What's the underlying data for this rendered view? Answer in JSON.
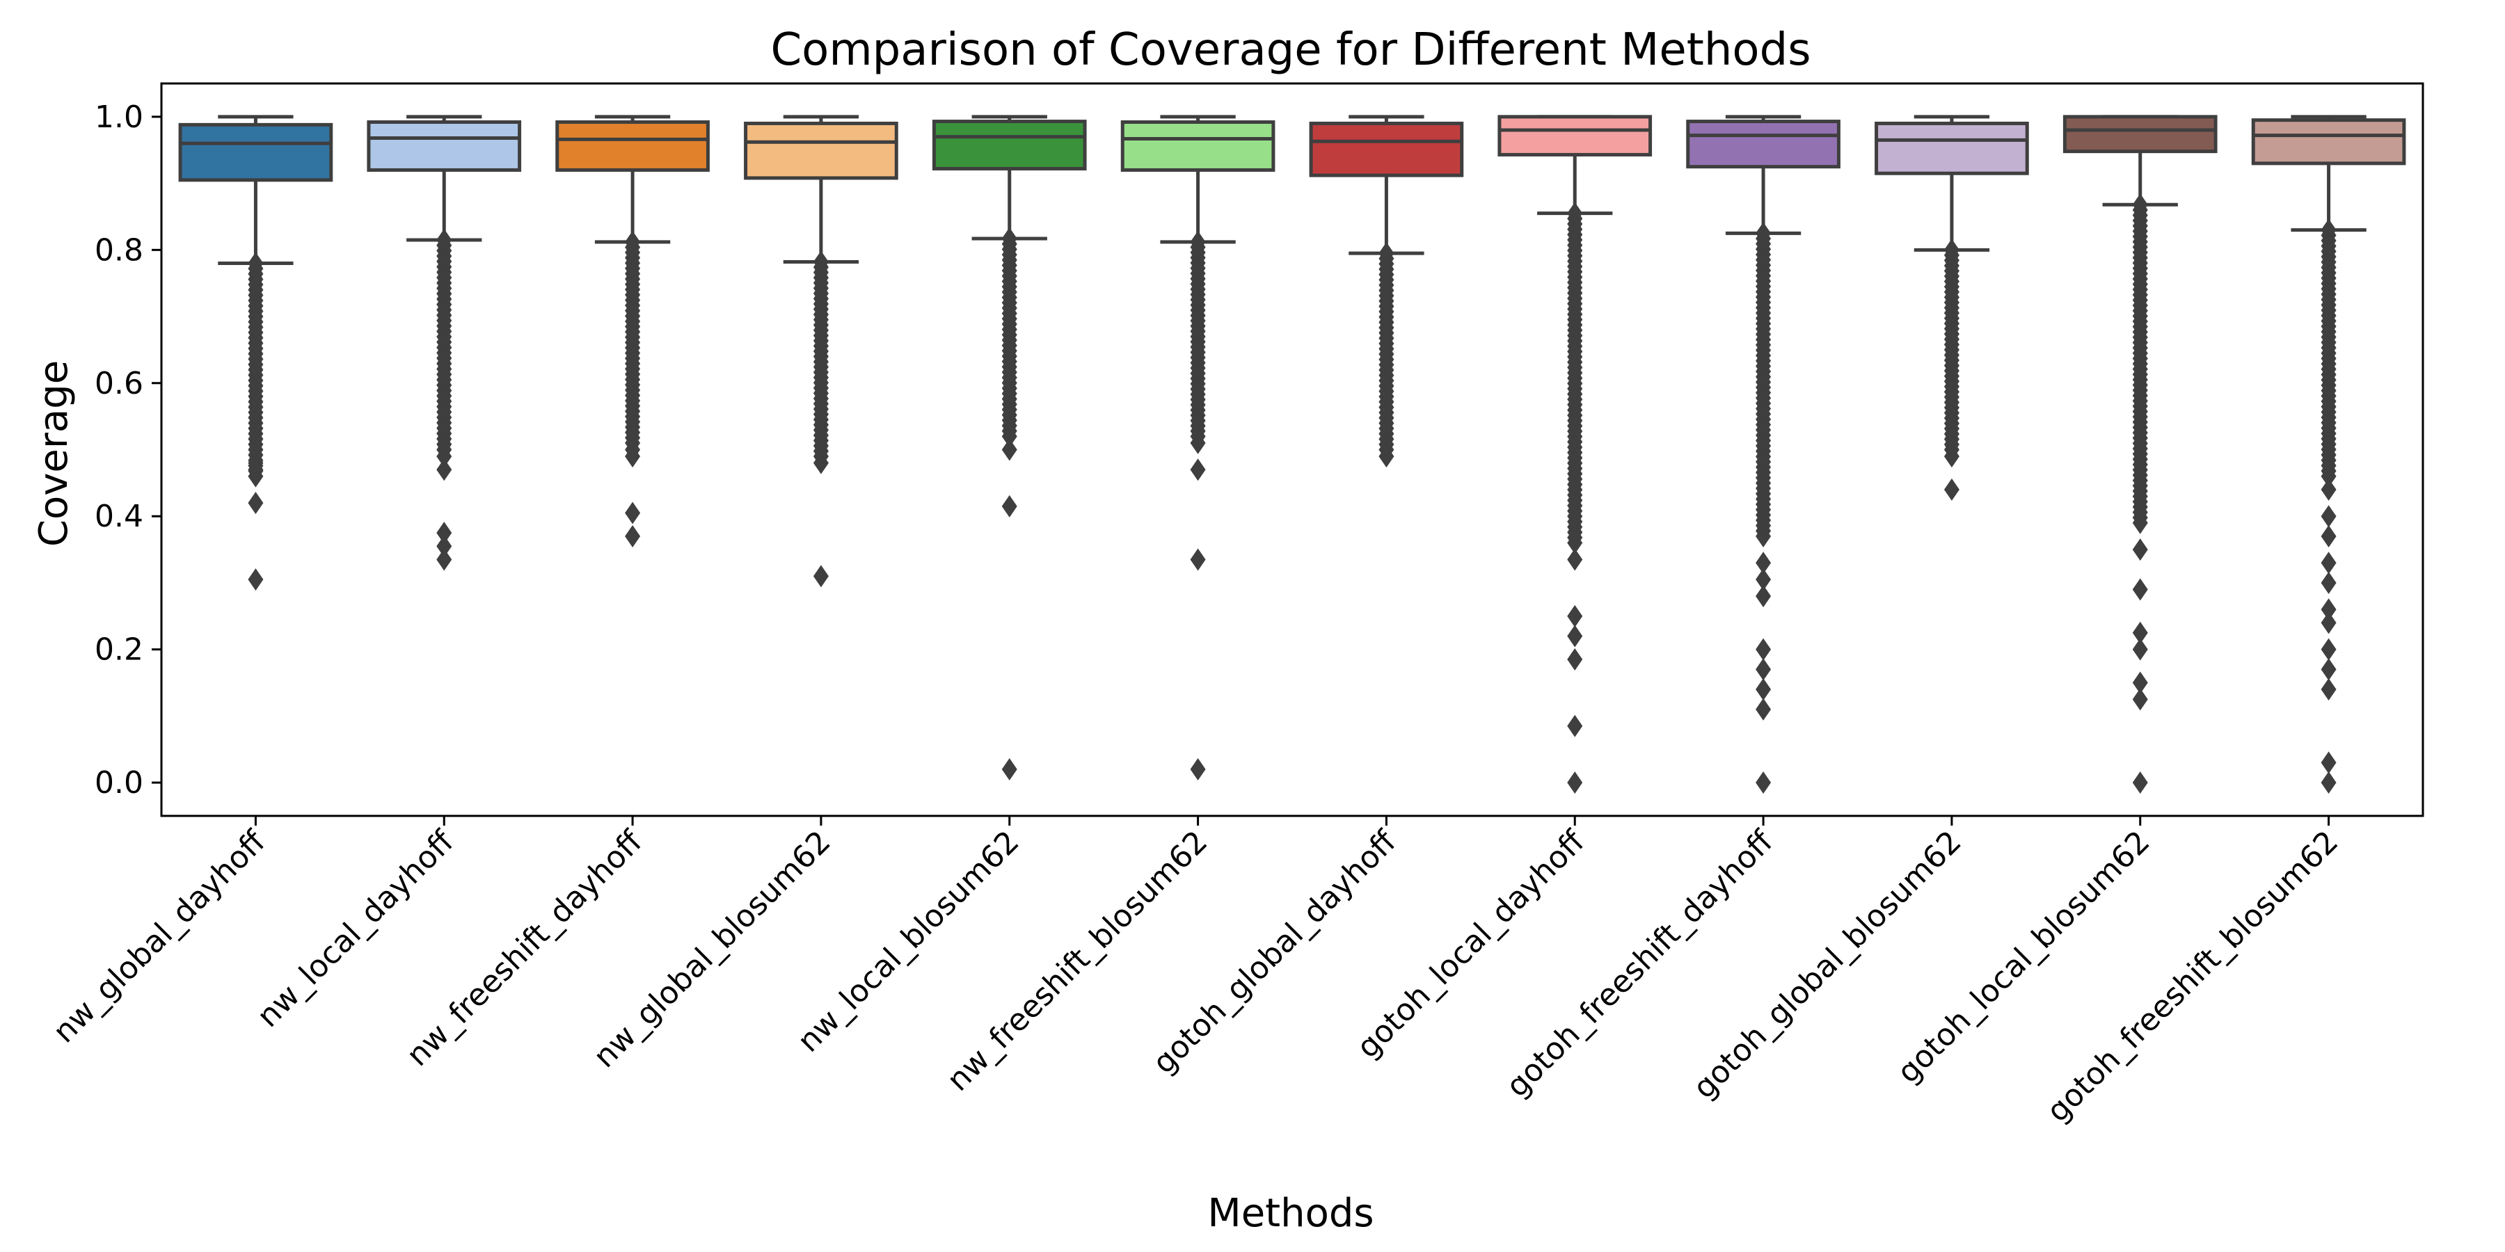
{
  "chart_data": {
    "type": "box",
    "title": "Comparison of Coverage for Different Methods",
    "xlabel": "Methods",
    "ylabel": "Coverage",
    "ylim": [
      -0.05,
      1.05
    ],
    "yticks": [
      "0.0",
      "0.2",
      "0.4",
      "0.6",
      "0.8",
      "1.0"
    ],
    "ytick_values": [
      0.0,
      0.2,
      0.4,
      0.6,
      0.8,
      1.0
    ],
    "grid": false,
    "legend": "none",
    "categories": [
      "nw_global_dayhoff",
      "nw_local_dayhoff",
      "nw_freeshift_dayhoff",
      "nw_global_blosum62",
      "nw_local_blosum62",
      "nw_freeshift_blosum62",
      "gotoh_global_dayhoff",
      "gotoh_local_dayhoff",
      "gotoh_freeshift_dayhoff",
      "gotoh_global_blosum62",
      "gotoh_local_blosum62",
      "gotoh_freeshift_blosum62"
    ],
    "colors": [
      "#3274a1",
      "#aec7e8",
      "#e1812c",
      "#f4bb80",
      "#3a923a",
      "#98df8a",
      "#c03d3e",
      "#f5a0a0",
      "#9372b2",
      "#c3b1d1",
      "#845b53",
      "#c49c94"
    ],
    "boxes": [
      {
        "whislo": 0.78,
        "q1": 0.905,
        "median": 0.96,
        "q3": 0.988,
        "whishi": 1.0,
        "fliers_dense": [
          0.46,
          0.78
        ],
        "fliers": [
          0.48,
          0.47,
          0.42,
          0.305
        ]
      },
      {
        "whislo": 0.815,
        "q1": 0.92,
        "median": 0.968,
        "q3": 0.992,
        "whishi": 1.0,
        "fliers_dense": [
          0.5,
          0.815
        ],
        "fliers": [
          0.49,
          0.47,
          0.375,
          0.355,
          0.335
        ]
      },
      {
        "whislo": 0.812,
        "q1": 0.92,
        "median": 0.966,
        "q3": 0.992,
        "whishi": 1.0,
        "fliers_dense": [
          0.51,
          0.812
        ],
        "fliers": [
          0.5,
          0.49,
          0.405,
          0.37
        ]
      },
      {
        "whislo": 0.782,
        "q1": 0.908,
        "median": 0.962,
        "q3": 0.99,
        "whishi": 1.0,
        "fliers_dense": [
          0.49,
          0.782
        ],
        "fliers": [
          0.48,
          0.31
        ]
      },
      {
        "whislo": 0.817,
        "q1": 0.922,
        "median": 0.97,
        "q3": 0.993,
        "whishi": 1.0,
        "fliers_dense": [
          0.52,
          0.817
        ],
        "fliers": [
          0.5,
          0.415,
          0.02
        ]
      },
      {
        "whislo": 0.812,
        "q1": 0.92,
        "median": 0.967,
        "q3": 0.992,
        "whishi": 1.0,
        "fliers_dense": [
          0.52,
          0.812
        ],
        "fliers": [
          0.51,
          0.47,
          0.335,
          0.02
        ]
      },
      {
        "whislo": 0.795,
        "q1": 0.912,
        "median": 0.963,
        "q3": 0.99,
        "whishi": 1.0,
        "fliers_dense": [
          0.5,
          0.795
        ],
        "fliers": [
          0.49
        ]
      },
      {
        "whislo": 0.855,
        "q1": 0.943,
        "median": 0.98,
        "q3": 1.0,
        "whishi": 1.0,
        "fliers_dense": [
          0.36,
          0.855
        ],
        "fliers": [
          0.335,
          0.25,
          0.22,
          0.185,
          0.085,
          0.0
        ]
      },
      {
        "whislo": 0.825,
        "q1": 0.925,
        "median": 0.972,
        "q3": 0.993,
        "whishi": 1.0,
        "fliers_dense": [
          0.37,
          0.825
        ],
        "fliers": [
          0.33,
          0.305,
          0.28,
          0.2,
          0.17,
          0.14,
          0.11,
          0.0
        ]
      },
      {
        "whislo": 0.8,
        "q1": 0.915,
        "median": 0.965,
        "q3": 0.99,
        "whishi": 1.0,
        "fliers_dense": [
          0.5,
          0.8
        ],
        "fliers": [
          0.49,
          0.44
        ]
      },
      {
        "whislo": 0.868,
        "q1": 0.948,
        "median": 0.98,
        "q3": 1.0,
        "whishi": 1.0,
        "fliers_dense": [
          0.39,
          0.868
        ],
        "fliers": [
          0.35,
          0.29,
          0.225,
          0.2,
          0.15,
          0.125,
          0.0
        ]
      },
      {
        "whislo": 0.83,
        "q1": 0.93,
        "median": 0.972,
        "q3": 0.995,
        "whishi": 1.0,
        "fliers_dense": [
          0.46,
          0.83
        ],
        "fliers": [
          0.44,
          0.4,
          0.37,
          0.33,
          0.3,
          0.26,
          0.24,
          0.2,
          0.17,
          0.14,
          0.03,
          0.0
        ]
      }
    ]
  }
}
